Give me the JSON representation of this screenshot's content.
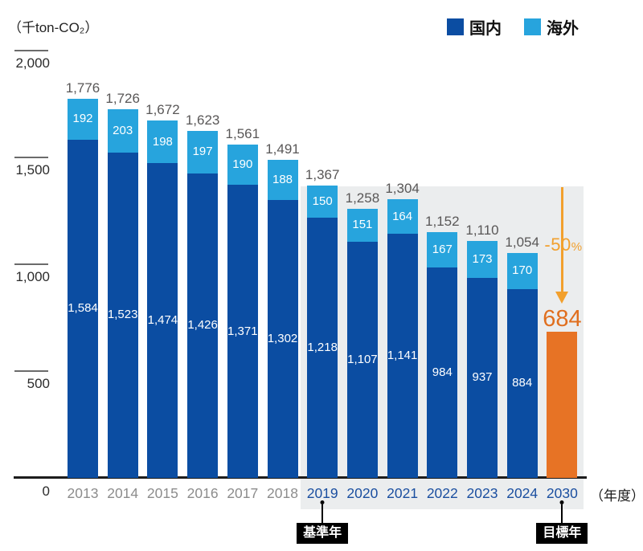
{
  "unit_label": "（千ton-CO₂）",
  "axis": {
    "zero_label": "0",
    "x_unit_label": "（年度）",
    "y_ticks": [
      {
        "label": "2,000",
        "value": 2000
      },
      {
        "label": "1,500",
        "value": 1500
      },
      {
        "label": "1,000",
        "value": 1000
      },
      {
        "label": "500",
        "value": 500
      }
    ]
  },
  "legend": [
    {
      "label": "国内",
      "color": "#0b4da2"
    },
    {
      "label": "海外",
      "color": "#27a4dd"
    }
  ],
  "colors": {
    "domestic": "#0b4da2",
    "overseas": "#27a4dd",
    "target_bar": "#e77325",
    "target_text": "#e06f1f",
    "arrow": "#f2a02d",
    "highlight_bg": "#ebedee",
    "total_label": "#595757",
    "year_gray": "#8c8c8c",
    "year_blue": "#1b4fa0"
  },
  "chart_data": {
    "type": "bar",
    "stacked": true,
    "title": "",
    "xlabel": "年度",
    "ylabel": "千ton-CO₂",
    "ylim": [
      0,
      2000
    ],
    "grid": false,
    "legend_position": "top-right",
    "categories": [
      "2013",
      "2014",
      "2015",
      "2016",
      "2017",
      "2018",
      "2019",
      "2020",
      "2021",
      "2022",
      "2023",
      "2024",
      "2030"
    ],
    "gray_year_count": 6,
    "series": [
      {
        "name": "国内",
        "values": [
          1584,
          1523,
          1474,
          1426,
          1371,
          1302,
          1218,
          1107,
          1141,
          984,
          937,
          884,
          null
        ],
        "labels": [
          "1,584",
          "1,523",
          "1,474",
          "1,426",
          "1,371",
          "1,302",
          "1,218",
          "1,107",
          "1,141",
          "984",
          "937",
          "884",
          ""
        ]
      },
      {
        "name": "海外",
        "values": [
          192,
          203,
          198,
          197,
          190,
          188,
          150,
          151,
          164,
          167,
          173,
          170,
          null
        ],
        "labels": [
          "192",
          "203",
          "198",
          "197",
          "190",
          "188",
          "150",
          "151",
          "164",
          "167",
          "173",
          "170",
          ""
        ]
      }
    ],
    "totals": [
      "1,776",
      "1,726",
      "1,672",
      "1,623",
      "1,561",
      "1,491",
      "1,367",
      "1,258",
      "1,304",
      "1,152",
      "1,110",
      "1,054",
      ""
    ],
    "target": {
      "year": "2030",
      "value": 684,
      "label": "684"
    },
    "highlight_range": {
      "from": "2019",
      "to": "2030"
    }
  },
  "annotations": {
    "reduction_value": "-50",
    "reduction_unit": "%",
    "base_year_tag": "基準年",
    "target_year_tag": "目標年"
  }
}
